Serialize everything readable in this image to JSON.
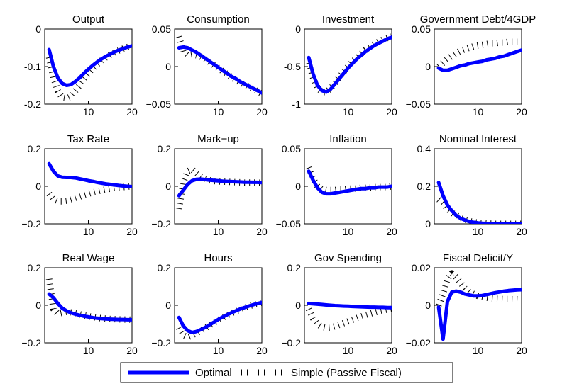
{
  "colors": {
    "optimal": "#0000ff",
    "simple": "#000000"
  },
  "legend": {
    "optimal_label": "Optimal",
    "simple_label": "Simple (Passive Fiscal)"
  },
  "chart_data": [
    {
      "type": "line",
      "title": "Output",
      "xlim": [
        0,
        20
      ],
      "ylim": [
        -0.2,
        0
      ],
      "xticks": [
        "10",
        "20"
      ],
      "yticks": [
        "0",
        "-0.1",
        "-0.2"
      ],
      "x": [
        1,
        2,
        3,
        4,
        5,
        6,
        7,
        8,
        9,
        10,
        11,
        12,
        13,
        14,
        15,
        16,
        17,
        18,
        19,
        20
      ],
      "series": [
        {
          "name": "Optimal",
          "values": [
            -0.055,
            -0.1,
            -0.13,
            -0.145,
            -0.15,
            -0.148,
            -0.14,
            -0.13,
            -0.118,
            -0.107,
            -0.097,
            -0.088,
            -0.08,
            -0.073,
            -0.067,
            -0.061,
            -0.056,
            -0.052,
            -0.048,
            -0.045
          ]
        },
        {
          "name": "Simple (Passive Fiscal)",
          "values": [
            -0.075,
            -0.13,
            -0.165,
            -0.183,
            -0.185,
            -0.18,
            -0.165,
            -0.15,
            -0.133,
            -0.118,
            -0.105,
            -0.094,
            -0.084,
            -0.076,
            -0.069,
            -0.062,
            -0.057,
            -0.052,
            -0.048,
            -0.044
          ]
        }
      ]
    },
    {
      "type": "line",
      "title": "Consumption",
      "xlim": [
        0,
        20
      ],
      "ylim": [
        -0.05,
        0.05
      ],
      "xticks": [
        "10",
        "20"
      ],
      "yticks": [
        "0.05",
        "0",
        "−0.05"
      ],
      "x": [
        1,
        2,
        3,
        4,
        5,
        6,
        7,
        8,
        9,
        10,
        11,
        12,
        13,
        14,
        15,
        16,
        17,
        18,
        19,
        20
      ],
      "series": [
        {
          "name": "Optimal",
          "values": [
            0.025,
            0.026,
            0.025,
            0.022,
            0.019,
            0.015,
            0.011,
            0.007,
            0.003,
            -0.001,
            -0.005,
            -0.009,
            -0.013,
            -0.016,
            -0.02,
            -0.023,
            -0.026,
            -0.029,
            -0.032,
            -0.035
          ]
        },
        {
          "name": "Simple (Passive Fiscal)",
          "values": [
            0.04,
            0.02,
            0.015,
            0.016,
            0.015,
            0.013,
            0.01,
            0.006,
            0.002,
            -0.002,
            -0.006,
            -0.01,
            -0.014,
            -0.018,
            -0.021,
            -0.024,
            -0.027,
            -0.03,
            -0.033,
            -0.036
          ]
        }
      ]
    },
    {
      "type": "line",
      "title": "Investment",
      "xlim": [
        0,
        20
      ],
      "ylim": [
        -1,
        0
      ],
      "xticks": [
        "10",
        "20"
      ],
      "yticks": [
        "0",
        "-0.5",
        "-1"
      ],
      "x": [
        1,
        2,
        3,
        4,
        5,
        6,
        7,
        8,
        9,
        10,
        11,
        12,
        13,
        14,
        15,
        16,
        17,
        18,
        19,
        20
      ],
      "series": [
        {
          "name": "Optimal",
          "values": [
            -0.38,
            -0.6,
            -0.75,
            -0.82,
            -0.84,
            -0.8,
            -0.73,
            -0.66,
            -0.59,
            -0.52,
            -0.46,
            -0.4,
            -0.35,
            -0.3,
            -0.26,
            -0.22,
            -0.19,
            -0.16,
            -0.13,
            -0.11
          ]
        },
        {
          "name": "Simple (Passive Fiscal)",
          "values": [
            -0.45,
            -0.65,
            -0.78,
            -0.84,
            -0.84,
            -0.79,
            -0.72,
            -0.64,
            -0.57,
            -0.5,
            -0.44,
            -0.38,
            -0.33,
            -0.28,
            -0.24,
            -0.2,
            -0.17,
            -0.14,
            -0.12,
            -0.1
          ]
        }
      ]
    },
    {
      "type": "line",
      "title": "Government Debt/4GDP",
      "xlim": [
        0,
        20
      ],
      "ylim": [
        -0.05,
        0.05
      ],
      "xticks": [
        "10",
        "20"
      ],
      "yticks": [
        "0.05",
        "0",
        "−0.05"
      ],
      "x": [
        1,
        2,
        3,
        4,
        5,
        6,
        7,
        8,
        9,
        10,
        11,
        12,
        13,
        14,
        15,
        16,
        17,
        18,
        19,
        20
      ],
      "series": [
        {
          "name": "Optimal",
          "values": [
            -0.002,
            -0.005,
            -0.005,
            -0.003,
            -0.001,
            0.001,
            0.002,
            0.004,
            0.005,
            0.006,
            0.007,
            0.009,
            0.01,
            0.011,
            0.013,
            0.014,
            0.016,
            0.018,
            0.02,
            0.022
          ]
        },
        {
          "name": "Simple (Passive Fiscal)",
          "values": [
            0.0,
            0.005,
            0.01,
            0.014,
            0.018,
            0.021,
            0.023,
            0.025,
            0.027,
            0.028,
            0.029,
            0.03,
            0.031,
            0.031,
            0.032,
            0.032,
            0.033,
            0.033,
            0.033,
            0.033
          ]
        }
      ]
    },
    {
      "type": "line",
      "title": "Tax Rate",
      "xlim": [
        0,
        20
      ],
      "ylim": [
        -0.2,
        0.2
      ],
      "xticks": [
        "10",
        "20"
      ],
      "yticks": [
        "0.2",
        "0",
        "−0.2"
      ],
      "x": [
        1,
        2,
        3,
        4,
        5,
        6,
        7,
        8,
        9,
        10,
        11,
        12,
        13,
        14,
        15,
        16,
        17,
        18,
        19,
        20
      ],
      "series": [
        {
          "name": "Optimal",
          "values": [
            0.12,
            0.08,
            0.055,
            0.048,
            0.047,
            0.047,
            0.045,
            0.04,
            0.035,
            0.03,
            0.026,
            0.021,
            0.017,
            0.013,
            0.01,
            0.007,
            0.004,
            0.002,
            0.0,
            -0.002
          ]
        },
        {
          "name": "Simple (Passive Fiscal)",
          "values": [
            -0.04,
            -0.07,
            -0.08,
            -0.08,
            -0.077,
            -0.07,
            -0.063,
            -0.055,
            -0.047,
            -0.04,
            -0.033,
            -0.027,
            -0.022,
            -0.017,
            -0.013,
            -0.009,
            -0.006,
            -0.004,
            -0.002,
            0.0
          ]
        }
      ]
    },
    {
      "type": "line",
      "title": "Mark−up",
      "xlim": [
        0,
        20
      ],
      "ylim": [
        -0.2,
        0.2
      ],
      "xticks": [
        "10",
        "20"
      ],
      "yticks": [
        "0.2",
        "0",
        "−0.2"
      ],
      "x": [
        1,
        2,
        3,
        4,
        5,
        6,
        7,
        8,
        9,
        10,
        11,
        12,
        13,
        14,
        15,
        16,
        17,
        18,
        19,
        20
      ],
      "series": [
        {
          "name": "Optimal",
          "values": [
            -0.05,
            -0.02,
            0.01,
            0.03,
            0.037,
            0.038,
            0.036,
            0.033,
            0.031,
            0.029,
            0.027,
            0.026,
            0.025,
            0.024,
            0.023,
            0.022,
            0.022,
            0.021,
            0.021,
            0.02
          ]
        },
        {
          "name": "Simple (Passive Fiscal)",
          "values": [
            -0.12,
            0.02,
            0.08,
            0.09,
            0.07,
            0.05,
            0.04,
            0.032,
            0.028,
            0.026,
            0.025,
            0.024,
            0.023,
            0.022,
            0.021,
            0.02,
            0.02,
            0.02,
            0.02,
            0.019
          ]
        }
      ]
    },
    {
      "type": "line",
      "title": "Inflation",
      "xlim": [
        0,
        20
      ],
      "ylim": [
        -0.05,
        0.05
      ],
      "xticks": [
        "10",
        "20"
      ],
      "yticks": [
        "0.05",
        "0",
        "−0.05"
      ],
      "x": [
        1,
        2,
        3,
        4,
        5,
        6,
        7,
        8,
        9,
        10,
        11,
        12,
        13,
        14,
        15,
        16,
        17,
        18,
        19,
        20
      ],
      "series": [
        {
          "name": "Optimal",
          "values": [
            0.02,
            0.008,
            -0.002,
            -0.008,
            -0.01,
            -0.01,
            -0.009,
            -0.008,
            -0.007,
            -0.006,
            -0.005,
            -0.004,
            -0.003,
            -0.003,
            -0.002,
            -0.002,
            -0.001,
            -0.001,
            -0.001,
            0.0
          ]
        },
        {
          "name": "Simple (Passive Fiscal)",
          "values": [
            0.025,
            0.01,
            0.0,
            -0.004,
            -0.005,
            -0.005,
            -0.005,
            -0.004,
            -0.004,
            -0.003,
            -0.003,
            -0.003,
            -0.002,
            -0.002,
            -0.002,
            -0.001,
            -0.001,
            -0.001,
            -0.001,
            0.0
          ]
        }
      ]
    },
    {
      "type": "line",
      "title": "Nominal Interest",
      "xlim": [
        0,
        20
      ],
      "ylim": [
        0,
        0.4
      ],
      "xticks": [
        "10",
        "20"
      ],
      "yticks": [
        "0.4",
        "0.2",
        "0"
      ],
      "x": [
        1,
        2,
        3,
        4,
        5,
        6,
        7,
        8,
        9,
        10,
        11,
        12,
        13,
        14,
        15,
        16,
        17,
        18,
        19,
        20
      ],
      "series": [
        {
          "name": "Optimal",
          "values": [
            0.22,
            0.15,
            0.1,
            0.07,
            0.045,
            0.03,
            0.02,
            0.012,
            0.008,
            0.005,
            0.003,
            0.002,
            0.001,
            0.0,
            0.0,
            0.0,
            0.0,
            0.0,
            0.0,
            0.0
          ]
        },
        {
          "name": "Simple (Passive Fiscal)",
          "values": [
            0.13,
            0.11,
            0.08,
            0.06,
            0.045,
            0.033,
            0.023,
            0.015,
            0.01,
            0.006,
            0.004,
            0.002,
            0.001,
            0.0,
            0.0,
            0.0,
            0.0,
            0.0,
            0.0,
            0.0
          ]
        }
      ]
    },
    {
      "type": "line",
      "title": "Real Wage",
      "xlim": [
        0,
        20
      ],
      "ylim": [
        -0.2,
        0.2
      ],
      "xticks": [
        "10",
        "20"
      ],
      "yticks": [
        "0.2",
        "0",
        "−0.2"
      ],
      "x": [
        1,
        2,
        3,
        4,
        5,
        6,
        7,
        8,
        9,
        10,
        11,
        12,
        13,
        14,
        15,
        16,
        17,
        18,
        19,
        20
      ],
      "series": [
        {
          "name": "Optimal",
          "values": [
            0.06,
            0.04,
            0.01,
            -0.015,
            -0.03,
            -0.04,
            -0.047,
            -0.053,
            -0.058,
            -0.062,
            -0.066,
            -0.069,
            -0.071,
            -0.073,
            -0.074,
            -0.075,
            -0.076,
            -0.076,
            -0.077,
            -0.077
          ]
        },
        {
          "name": "Simple (Passive Fiscal)",
          "values": [
            0.14,
            -0.02,
            -0.045,
            -0.04,
            -0.035,
            -0.038,
            -0.043,
            -0.048,
            -0.053,
            -0.058,
            -0.062,
            -0.066,
            -0.069,
            -0.071,
            -0.073,
            -0.074,
            -0.075,
            -0.076,
            -0.076,
            -0.077
          ]
        }
      ]
    },
    {
      "type": "line",
      "title": "Hours",
      "xlim": [
        0,
        20
      ],
      "ylim": [
        -0.2,
        0.2
      ],
      "xticks": [
        "10",
        "20"
      ],
      "yticks": [
        "0.2",
        "0",
        "−0.2"
      ],
      "x": [
        1,
        2,
        3,
        4,
        5,
        6,
        7,
        8,
        9,
        10,
        11,
        12,
        13,
        14,
        15,
        16,
        17,
        18,
        19,
        20
      ],
      "series": [
        {
          "name": "Optimal",
          "values": [
            -0.065,
            -0.11,
            -0.135,
            -0.145,
            -0.14,
            -0.13,
            -0.118,
            -0.104,
            -0.09,
            -0.076,
            -0.063,
            -0.051,
            -0.04,
            -0.03,
            -0.02,
            -0.012,
            -0.004,
            0.003,
            0.009,
            0.015
          ]
        },
        {
          "name": "Simple (Passive Fiscal)",
          "values": [
            -0.12,
            -0.16,
            -0.17,
            -0.16,
            -0.148,
            -0.136,
            -0.122,
            -0.108,
            -0.093,
            -0.079,
            -0.066,
            -0.054,
            -0.042,
            -0.032,
            -0.022,
            -0.013,
            -0.005,
            0.002,
            0.008,
            0.014
          ]
        }
      ]
    },
    {
      "type": "line",
      "title": "Gov Spending",
      "xlim": [
        0,
        20
      ],
      "ylim": [
        -0.2,
        0.2
      ],
      "xticks": [
        "10",
        "20"
      ],
      "yticks": [
        "0.2",
        "0",
        "−0.2"
      ],
      "x": [
        1,
        2,
        3,
        4,
        5,
        6,
        7,
        8,
        9,
        10,
        11,
        12,
        13,
        14,
        15,
        16,
        17,
        18,
        19,
        20
      ],
      "series": [
        {
          "name": "Optimal",
          "values": [
            0.01,
            0.008,
            0.006,
            0.004,
            0.002,
            0.0,
            -0.002,
            -0.003,
            -0.004,
            -0.005,
            -0.006,
            -0.007,
            -0.008,
            -0.009,
            -0.01,
            -0.01,
            -0.011,
            -0.011,
            -0.012,
            -0.012
          ]
        },
        {
          "name": "Simple (Passive Fiscal)",
          "values": [
            -0.02,
            -0.07,
            -0.1,
            -0.115,
            -0.12,
            -0.118,
            -0.112,
            -0.104,
            -0.095,
            -0.086,
            -0.077,
            -0.068,
            -0.06,
            -0.052,
            -0.045,
            -0.039,
            -0.033,
            -0.028,
            -0.023,
            -0.019
          ]
        }
      ]
    },
    {
      "type": "line",
      "title": "Fiscal Deficit/Y",
      "xlim": [
        0,
        20
      ],
      "ylim": [
        -0.02,
        0.02
      ],
      "xticks": [
        "10",
        "20"
      ],
      "yticks": [
        "0.02",
        "0",
        "−0.02"
      ],
      "x": [
        1,
        2,
        3,
        4,
        5,
        6,
        7,
        8,
        9,
        10,
        11,
        12,
        13,
        14,
        15,
        16,
        17,
        18,
        19,
        20
      ],
      "series": [
        {
          "name": "Optimal",
          "values": [
            -0.001,
            -0.018,
            0.002,
            0.007,
            0.0075,
            0.007,
            0.006,
            0.0055,
            0.005,
            0.005,
            0.0052,
            0.0057,
            0.0062,
            0.0067,
            0.0071,
            0.0075,
            0.0078,
            0.008,
            0.0082,
            0.0083
          ]
        },
        {
          "name": "Simple (Passive Fiscal)",
          "values": [
            0.0,
            0.006,
            0.014,
            0.017,
            0.015,
            0.012,
            0.009,
            0.007,
            0.006,
            0.005,
            0.0045,
            0.004,
            0.0037,
            0.0035,
            0.0034,
            0.0033,
            0.0033,
            0.0032,
            0.0032,
            0.0031
          ]
        }
      ]
    }
  ]
}
